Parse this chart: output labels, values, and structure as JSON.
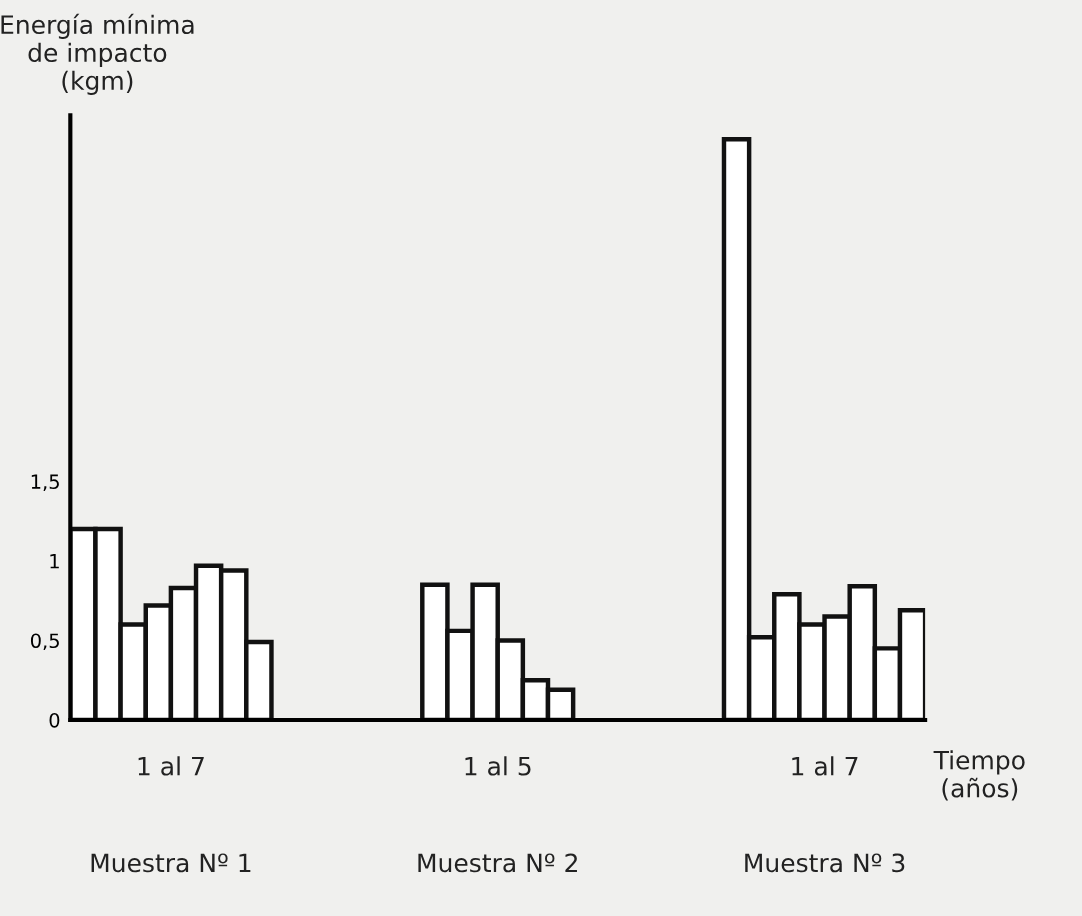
{
  "chart_data": {
    "type": "bar",
    "ylabel": "Energía mínima\nde impacto\n(kgm)",
    "xlabel": "Tiempo\n(años)",
    "categories": [
      null,
      null,
      null,
      null,
      null,
      null,
      null,
      null,
      null,
      null,
      null,
      null,
      null,
      null,
      null,
      null,
      null,
      null,
      null,
      null,
      null,
      null,
      null,
      null,
      null,
      null,
      null,
      null,
      null,
      null,
      null,
      null,
      null,
      null
    ],
    "values": [
      1.2,
      1.2,
      0.6,
      0.72,
      0.83,
      0.97,
      0.94,
      0.49,
      null,
      null,
      null,
      null,
      null,
      null,
      0.85,
      0.56,
      0.85,
      0.5,
      0.25,
      0.19,
      null,
      null,
      null,
      null,
      null,
      null,
      3.65,
      0.52,
      0.79,
      0.6,
      0.65,
      0.84,
      0.45,
      0.69
    ],
    "color": "#ffffff",
    "ylim": [
      0,
      3.8
    ],
    "yticks": [
      0,
      {
        "value": 0.5,
        "label": "0,5"
      },
      1,
      {
        "value": 1.5,
        "label": "1,5"
      }
    ],
    "annotations": [
      "1 al 7",
      "1 al 5",
      "1 al 7",
      "Muestra Nº 1",
      "Muestra Nº 2",
      "Muestra Nº 3"
    ],
    "grid": false
  }
}
